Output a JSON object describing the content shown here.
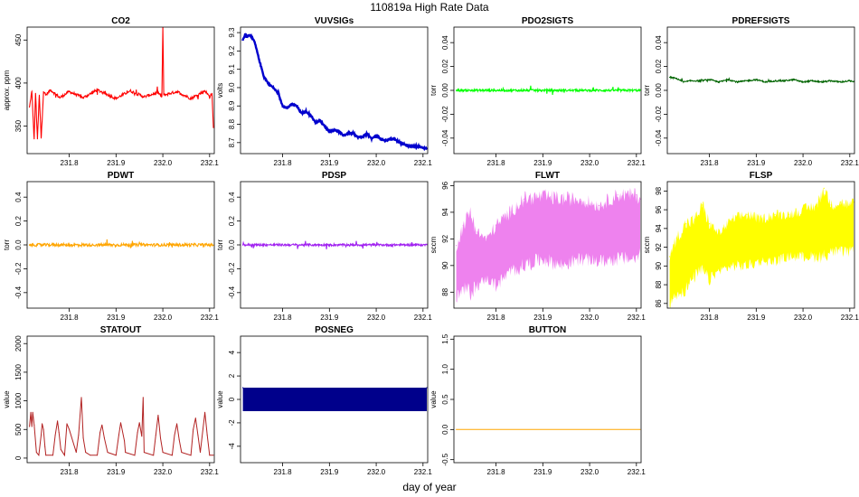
{
  "figure": {
    "title": "110819a   High Rate Data",
    "xlabel": "day of year"
  },
  "chart_data": [
    {
      "name": "CO2",
      "type": "line",
      "title": "CO2",
      "ylabel": "approx. ppm",
      "color": "#ff0000",
      "xlim": [
        231.71,
        232.11
      ],
      "ylim": [
        318,
        465
      ],
      "xticks": [
        "231.8",
        "231.9",
        "232.0",
        "232.1"
      ],
      "yticks": [
        "350",
        "400",
        "450"
      ],
      "x": [
        231.715,
        231.72,
        231.725,
        231.728,
        231.732,
        231.736,
        231.74,
        231.745,
        231.75,
        231.76,
        231.78,
        231.8,
        231.83,
        231.86,
        231.9,
        231.93,
        231.96,
        231.99,
        231.998,
        232.0,
        232.002,
        232.03,
        232.06,
        232.09,
        232.1,
        232.105,
        232.108
      ],
      "y": [
        372,
        390,
        335,
        388,
        335,
        386,
        336,
        390,
        386,
        392,
        383,
        390,
        383,
        392,
        382,
        391,
        384,
        389,
        384,
        465,
        386,
        390,
        382,
        391,
        384,
        388,
        348
      ]
    },
    {
      "name": "VUVSIGs",
      "type": "line",
      "title": "VUVSIGs",
      "ylabel": "volts",
      "color": "#0000cd",
      "xlim": [
        231.71,
        232.11
      ],
      "ylim": [
        8.64,
        9.33
      ],
      "xticks": [
        "231.8",
        "231.9",
        "232.0",
        "232.1"
      ],
      "yticks": [
        "8.7",
        "8.8",
        "8.9",
        "9.0",
        "9.1",
        "9.2",
        "9.3"
      ],
      "x": [
        231.715,
        231.72,
        231.725,
        231.73,
        231.735,
        231.74,
        231.75,
        231.76,
        231.77,
        231.78,
        231.79,
        231.8,
        231.81,
        231.82,
        231.83,
        231.84,
        231.85,
        231.86,
        231.87,
        231.88,
        231.89,
        231.9,
        231.91,
        231.92,
        231.93,
        231.94,
        231.95,
        231.96,
        231.97,
        231.98,
        231.99,
        232.0,
        232.01,
        232.02,
        232.03,
        232.04,
        232.05,
        232.06,
        232.07,
        232.08,
        232.09,
        232.1,
        232.108
      ],
      "y": [
        9.26,
        9.29,
        9.28,
        9.29,
        9.27,
        9.25,
        9.15,
        9.06,
        9.02,
        9.0,
        8.97,
        8.9,
        8.89,
        8.91,
        8.9,
        8.86,
        8.87,
        8.85,
        8.81,
        8.82,
        8.79,
        8.76,
        8.77,
        8.76,
        8.74,
        8.75,
        8.75,
        8.73,
        8.73,
        8.75,
        8.72,
        8.74,
        8.72,
        8.71,
        8.72,
        8.72,
        8.7,
        8.69,
        8.68,
        8.68,
        8.68,
        8.67,
        8.67
      ]
    },
    {
      "name": "PDO2SIGTS",
      "type": "line",
      "title": "PDO2SIGTS",
      "ylabel": "torr",
      "color": "#00ff00",
      "xlim": [
        231.71,
        232.11
      ],
      "ylim": [
        -0.053,
        0.053
      ],
      "xticks": [
        "231.8",
        "231.9",
        "232.0",
        "232.1"
      ],
      "yticks": [
        "-0.04",
        "-0.02",
        "0.00",
        "0.02",
        "0.04"
      ],
      "x": [
        231.715,
        231.78,
        231.85,
        231.92,
        231.99,
        232.06,
        232.108
      ],
      "y": [
        0.0,
        0.0,
        0.0,
        0.0,
        0.0,
        0.0,
        0.0
      ]
    },
    {
      "name": "PDREFSIGTS",
      "type": "line",
      "title": "PDREFSIGTS",
      "ylabel": "torr",
      "color": "#006400",
      "xlim": [
        231.71,
        232.11
      ],
      "ylim": [
        -0.053,
        0.053
      ],
      "xticks": [
        "231.8",
        "231.9",
        "232.0",
        "232.1"
      ],
      "yticks": [
        "-0.04",
        "-0.02",
        "0.00",
        "0.02",
        "0.04"
      ],
      "x": [
        231.715,
        231.73,
        231.745,
        231.76,
        231.78,
        231.8,
        231.82,
        231.84,
        231.86,
        231.88,
        231.9,
        231.92,
        231.94,
        231.96,
        231.98,
        232.0,
        232.02,
        232.04,
        232.06,
        232.08,
        232.1,
        232.108
      ],
      "y": [
        0.011,
        0.01,
        0.007,
        0.008,
        0.008,
        0.009,
        0.007,
        0.009,
        0.007,
        0.008,
        0.009,
        0.007,
        0.008,
        0.008,
        0.009,
        0.007,
        0.008,
        0.007,
        0.008,
        0.007,
        0.008,
        0.007
      ]
    },
    {
      "name": "PDWT",
      "type": "line",
      "title": "PDWT",
      "ylabel": "torr",
      "color": "#ffa500",
      "xlim": [
        231.71,
        232.11
      ],
      "ylim": [
        -0.53,
        0.53
      ],
      "xticks": [
        "231.8",
        "231.9",
        "232.0",
        "232.1"
      ],
      "yticks": [
        "-0.4",
        "-0.2",
        "0.0",
        "0.2",
        "0.4"
      ],
      "x": [
        231.715,
        231.78,
        231.85,
        231.92,
        231.99,
        232.06,
        232.108
      ],
      "y": [
        0.0,
        0.0,
        0.0,
        0.0,
        0.0,
        0.0,
        0.0
      ]
    },
    {
      "name": "PDSP",
      "type": "line",
      "title": "PDSP",
      "ylabel": "torr",
      "color": "#a020f0",
      "xlim": [
        231.71,
        232.11
      ],
      "ylim": [
        -0.53,
        0.53
      ],
      "xticks": [
        "231.8",
        "231.9",
        "232.0",
        "232.1"
      ],
      "yticks": [
        "-0.4",
        "-0.2",
        "0.0",
        "0.2",
        "0.4"
      ],
      "x": [
        231.715,
        231.78,
        231.85,
        231.92,
        231.99,
        232.06,
        232.108
      ],
      "y": [
        0.0,
        0.0,
        0.0,
        0.0,
        0.0,
        0.0,
        0.0
      ]
    },
    {
      "name": "FLWT",
      "type": "area",
      "title": "FLWT",
      "ylabel": "sccm",
      "color": "#ee82ee",
      "xlim": [
        231.71,
        232.11
      ],
      "ylim": [
        86.8,
        96.3
      ],
      "xticks": [
        "231.8",
        "231.9",
        "232.0",
        "232.1"
      ],
      "yticks": [
        "88",
        "90",
        "92",
        "94",
        "96"
      ],
      "x": [
        231.715,
        231.73,
        231.745,
        231.76,
        231.78,
        231.8,
        231.83,
        231.86,
        231.9,
        231.94,
        231.98,
        232.02,
        232.06,
        232.1,
        232.108
      ],
      "upper": [
        91.5,
        93.0,
        94.0,
        92.5,
        92.0,
        93.0,
        94.0,
        95.0,
        95.2,
        95.0,
        95.0,
        94.5,
        95.3,
        95.3,
        95.0
      ],
      "lower": [
        87.5,
        88.2,
        88.0,
        88.5,
        89.0,
        88.5,
        89.5,
        90.0,
        90.5,
        90.0,
        90.5,
        90.3,
        90.5,
        90.5,
        90.8
      ]
    },
    {
      "name": "FLSP",
      "type": "area",
      "title": "FLSP",
      "ylabel": "sccm",
      "color": "#ffff00",
      "xlim": [
        231.71,
        232.11
      ],
      "ylim": [
        85.5,
        99.0
      ],
      "xticks": [
        "231.8",
        "231.9",
        "232.0",
        "232.1"
      ],
      "yticks": [
        "86",
        "88",
        "90",
        "92",
        "94",
        "96",
        "98"
      ],
      "x": [
        231.715,
        231.73,
        231.75,
        231.77,
        231.785,
        231.8,
        231.82,
        231.85,
        231.88,
        231.91,
        231.94,
        231.97,
        232.0,
        232.03,
        232.045,
        232.06,
        232.08,
        232.1,
        232.108
      ],
      "upper": [
        91.0,
        93.0,
        94.5,
        95.0,
        96.5,
        94.5,
        93.5,
        95.0,
        95.5,
        95.0,
        95.5,
        95.5,
        96.0,
        96.5,
        98.3,
        96.5,
        96.8,
        96.5,
        96.8
      ],
      "lower": [
        86.0,
        87.0,
        87.5,
        89.0,
        89.5,
        88.5,
        89.5,
        90.0,
        90.0,
        90.5,
        90.5,
        91.0,
        91.0,
        91.0,
        91.0,
        91.5,
        91.5,
        91.5,
        92.0
      ]
    },
    {
      "name": "STATOUT",
      "type": "line",
      "title": "STATOUT",
      "ylabel": "value",
      "color": "#b22222",
      "xlim": [
        231.71,
        232.11
      ],
      "ylim": [
        -80,
        2130
      ],
      "xticks": [
        "231.8",
        "231.9",
        "232.0",
        "232.1"
      ],
      "yticks": [
        "0",
        "500",
        "1000",
        "1500",
        "2000"
      ],
      "x": [
        231.715,
        231.718,
        231.72,
        231.722,
        231.725,
        231.73,
        231.735,
        231.74,
        231.742,
        231.745,
        231.748,
        231.75,
        231.765,
        231.77,
        231.775,
        231.778,
        231.782,
        231.79,
        231.795,
        231.8,
        231.815,
        231.82,
        231.826,
        231.83,
        231.835,
        231.845,
        231.86,
        231.866,
        231.87,
        231.875,
        231.882,
        231.9,
        231.906,
        231.91,
        231.918,
        231.92,
        231.94,
        231.946,
        231.95,
        231.955,
        231.958,
        231.96,
        231.98,
        231.985,
        231.99,
        231.995,
        232.0,
        232.02,
        232.025,
        232.03,
        232.035,
        232.04,
        232.06,
        232.065,
        232.07,
        232.075,
        232.08,
        232.09,
        232.095,
        232.1,
        232.108
      ],
      "y": [
        550,
        800,
        550,
        800,
        580,
        100,
        50,
        400,
        600,
        500,
        200,
        50,
        50,
        400,
        650,
        450,
        150,
        50,
        600,
        500,
        100,
        400,
        1060,
        350,
        100,
        50,
        50,
        450,
        580,
        350,
        100,
        50,
        400,
        620,
        300,
        100,
        50,
        450,
        620,
        380,
        1060,
        100,
        50,
        400,
        750,
        350,
        100,
        50,
        400,
        600,
        320,
        100,
        50,
        500,
        700,
        400,
        100,
        800,
        400,
        50,
        50
      ]
    },
    {
      "name": "POSNEG",
      "type": "area",
      "title": "POSNEG",
      "ylabel": "value",
      "color": "#00008b",
      "xlim": [
        231.71,
        232.11
      ],
      "ylim": [
        -5.4,
        5.4
      ],
      "xticks": [
        "231.8",
        "231.9",
        "232.0",
        "232.1"
      ],
      "yticks": [
        "-4",
        "-2",
        "0",
        "2",
        "4"
      ],
      "x": [
        231.715,
        232.108
      ],
      "upper": [
        1,
        1
      ],
      "lower": [
        -1,
        -1
      ]
    },
    {
      "name": "BUTTON",
      "type": "line",
      "title": "BUTTON",
      "ylabel": "value",
      "color": "#ffa500",
      "xlim": [
        231.71,
        232.11
      ],
      "ylim": [
        -0.55,
        1.55
      ],
      "xticks": [
        "231.8",
        "231.9",
        "232.0",
        "232.1"
      ],
      "yticks": [
        "-0.5",
        "0.0",
        "0.5",
        "1.0",
        "1.5"
      ],
      "x": [
        231.715,
        232.108
      ],
      "y": [
        0,
        0
      ]
    }
  ]
}
